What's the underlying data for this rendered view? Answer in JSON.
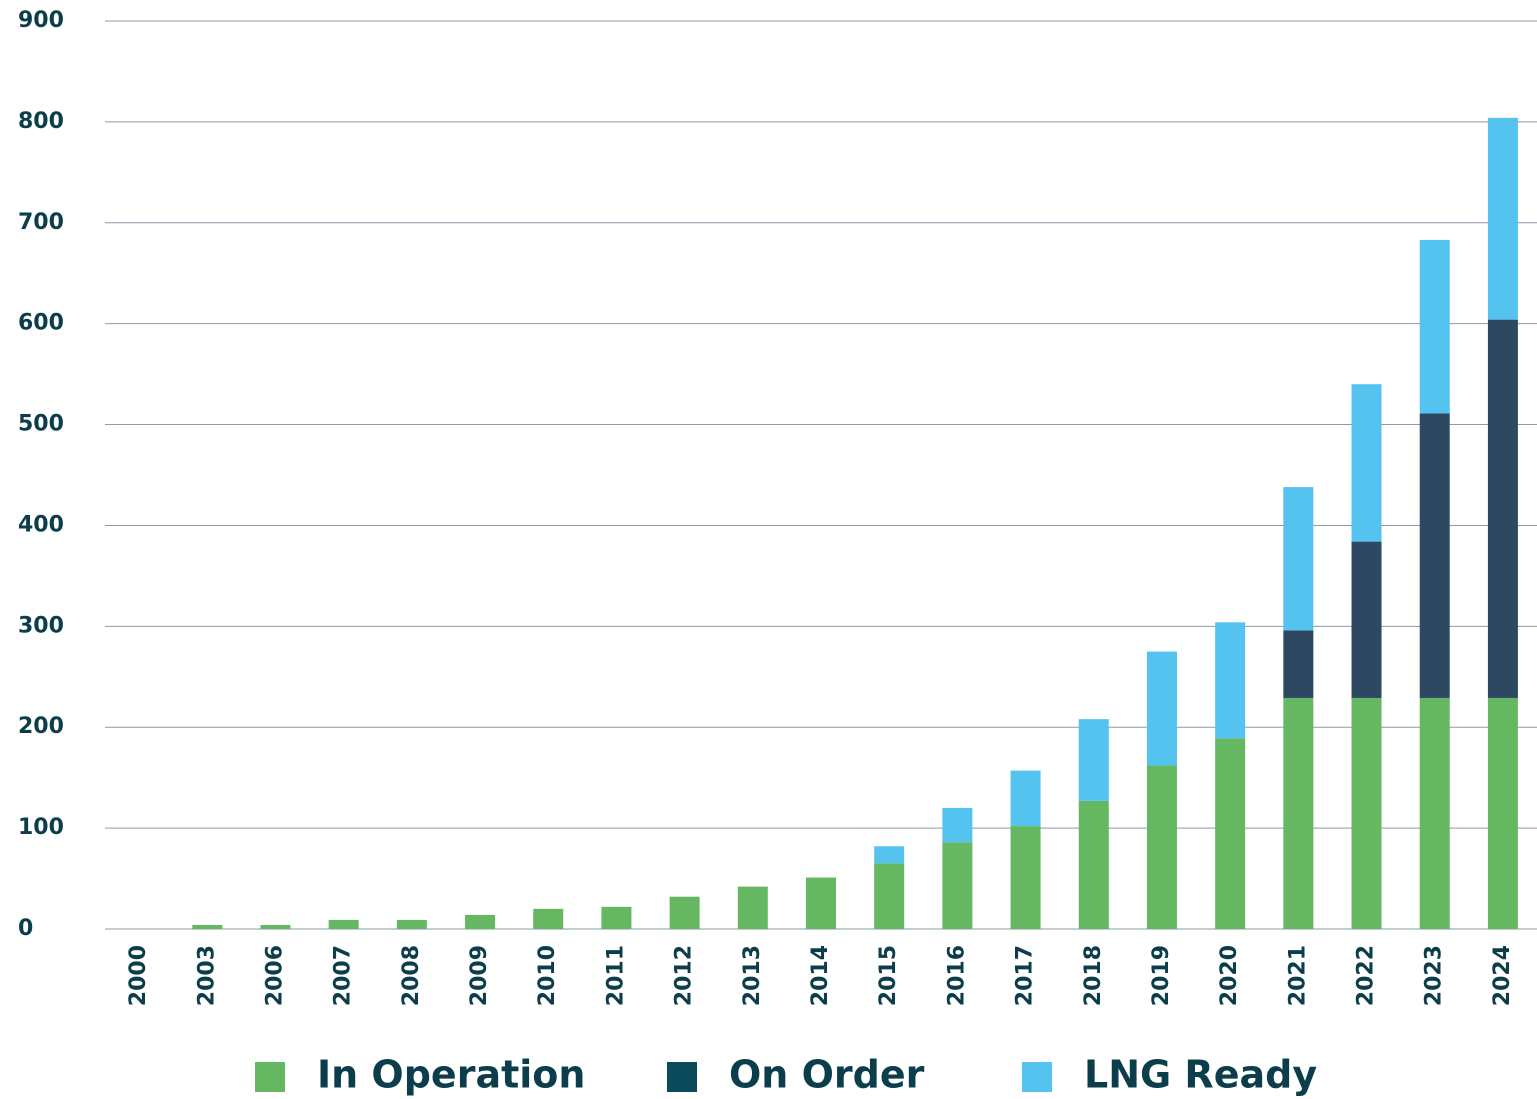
{
  "chart_data": {
    "type": "stacked_bar",
    "categories": [
      "2000",
      "2003",
      "2006",
      "2007",
      "2008",
      "2009",
      "2010",
      "2011",
      "2012",
      "2013",
      "2014",
      "2015",
      "2016",
      "2017",
      "2018",
      "2019",
      "2020",
      "2021",
      "2022",
      "2023",
      "2024"
    ],
    "series": [
      {
        "name": "In Operation",
        "color": "#66b762",
        "values": [
          0,
          4,
          4,
          9,
          9,
          14,
          20,
          22,
          32,
          42,
          51,
          65,
          86,
          102,
          127,
          162,
          189,
          229,
          229,
          229,
          229
        ]
      },
      {
        "name": "On Order",
        "color": "#2e4862",
        "legend_color": "#0b4a5a",
        "values": [
          0,
          0,
          0,
          0,
          0,
          0,
          0,
          0,
          0,
          0,
          0,
          0,
          0,
          0,
          0,
          0,
          0,
          67,
          155,
          282,
          375
        ]
      },
      {
        "name": "LNG Ready",
        "color": "#55c3ef",
        "values": [
          0,
          0,
          0,
          0,
          0,
          0,
          0,
          0,
          0,
          0,
          0,
          17,
          34,
          55,
          81,
          113,
          115,
          142,
          156,
          172,
          200
        ]
      }
    ],
    "ylim": [
      0,
      900
    ],
    "yticks": [
      0,
      100,
      200,
      300,
      400,
      500,
      600,
      700,
      800,
      900
    ],
    "grid": true,
    "legend": "bottom"
  }
}
